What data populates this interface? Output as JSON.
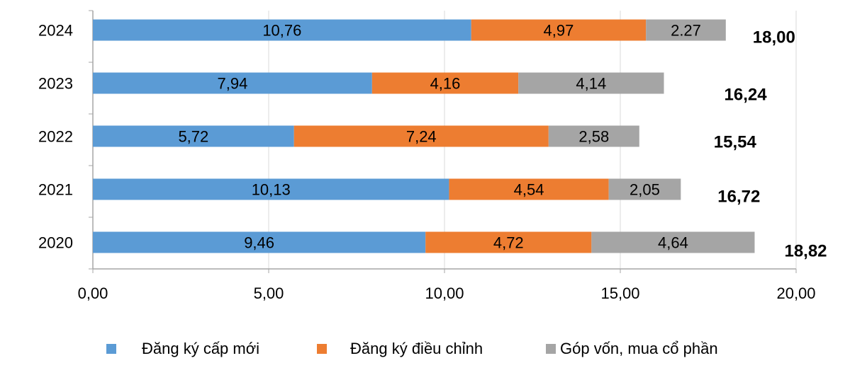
{
  "chart_data": {
    "type": "bar",
    "orientation": "horizontal",
    "stacked": true,
    "categories": [
      "2024",
      "2023",
      "2022",
      "2021",
      "2020"
    ],
    "series": [
      {
        "name": "Đăng ký cấp mới",
        "color": "#5b9bd5",
        "values": [
          10.76,
          7.94,
          5.72,
          10.13,
          9.46
        ],
        "labels": [
          "10,76",
          "7,94",
          "5,72",
          "10,13",
          "9,46"
        ]
      },
      {
        "name": "Đăng ký điều chỉnh",
        "color": "#ed7d31",
        "values": [
          4.97,
          4.16,
          7.24,
          4.54,
          4.72
        ],
        "labels": [
          "4,97",
          "4,16",
          "7,24",
          "4,54",
          "4,72"
        ]
      },
      {
        "name": "Góp vốn, mua cổ phần",
        "color": "#a5a5a5",
        "values": [
          2.27,
          4.14,
          2.58,
          2.05,
          4.64
        ],
        "labels": [
          "2.27",
          "4,14",
          "2,58",
          "2,05",
          "4,64"
        ]
      }
    ],
    "totals": [
      "18,00",
      "16,24",
      "15,54",
      "16,72",
      "18,82"
    ],
    "xlim": [
      0,
      20
    ],
    "xticks": [
      0,
      5,
      10,
      15,
      20
    ],
    "xtick_labels": [
      "0,00",
      "5,00",
      "10,00",
      "15,00",
      "20,00"
    ],
    "grid": "vertical",
    "legend": "bottom"
  }
}
